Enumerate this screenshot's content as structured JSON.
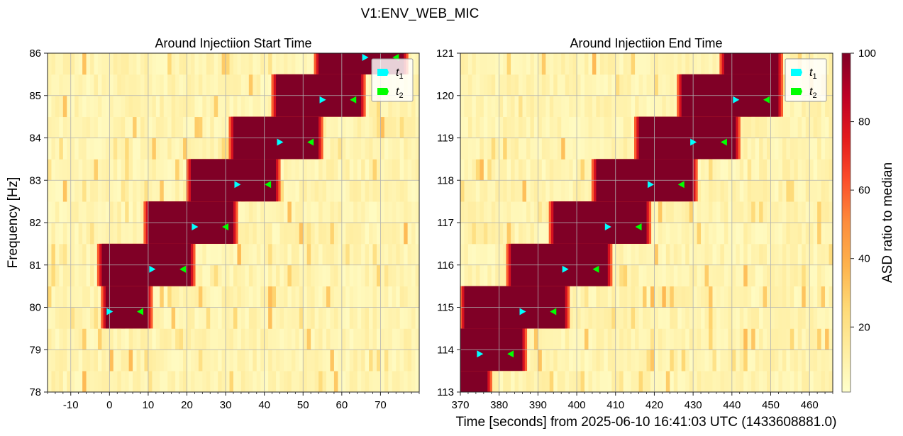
{
  "figure_title": "V1:ENV_WEB_MIC",
  "shared_xlabel": "Time [seconds] from 2025-06-10 16:41:03 UTC (1433608881.0)",
  "colorbar": {
    "label": "ASD ratio to median",
    "range": [
      1,
      100
    ],
    "ticks": [
      20,
      40,
      60,
      80,
      100
    ],
    "colormap": [
      "#ffffcc",
      "#ffeda0",
      "#fed976",
      "#feb24c",
      "#fd8d3c",
      "#fc4e2a",
      "#e31a1c",
      "#bd0026",
      "#800026"
    ]
  },
  "legend": {
    "t1": {
      "label": "t",
      "sub": "1",
      "color": "#00ffff"
    },
    "t2": {
      "label": "t",
      "sub": "2",
      "color": "#00ff00"
    }
  },
  "chart_data": [
    {
      "type": "heatmap",
      "title": "Around Injectiion Start Time",
      "xlabel": "",
      "ylabel": "Frequency [Hz]",
      "xlim": [
        -16,
        80
      ],
      "ylim": [
        78,
        86
      ],
      "xticks": [
        -10,
        0,
        10,
        20,
        30,
        40,
        50,
        60,
        70
      ],
      "yticks": [
        78,
        79,
        80,
        81,
        82,
        83,
        84,
        85,
        86
      ],
      "grid": true,
      "legend_position": "top-right",
      "saturated_blocks": [
        {
          "f_low": 79.5,
          "f_high": 80.5,
          "t_start": -1,
          "t_end": 10
        },
        {
          "f_low": 80.5,
          "f_high": 81.5,
          "t_start": -2,
          "t_end": 21
        },
        {
          "f_low": 81.5,
          "f_high": 82.5,
          "t_start": 10,
          "t_end": 32
        },
        {
          "f_low": 82.5,
          "f_high": 83.5,
          "t_start": 21,
          "t_end": 43
        },
        {
          "f_low": 83.5,
          "f_high": 84.5,
          "t_start": 32,
          "t_end": 54
        },
        {
          "f_low": 84.5,
          "f_high": 85.5,
          "t_start": 43,
          "t_end": 65
        },
        {
          "f_low": 85.5,
          "f_high": 86,
          "t_start": 54,
          "t_end": 76
        }
      ],
      "t1_markers": [
        {
          "t": 0,
          "f": 79.9
        },
        {
          "t": 11,
          "f": 80.9
        },
        {
          "t": 22,
          "f": 81.9
        },
        {
          "t": 33,
          "f": 82.9
        },
        {
          "t": 44,
          "f": 83.9
        },
        {
          "t": 55,
          "f": 84.9
        },
        {
          "t": 66,
          "f": 85.9
        }
      ],
      "t2_markers": [
        {
          "t": 8,
          "f": 79.9
        },
        {
          "t": 19,
          "f": 80.9
        },
        {
          "t": 30,
          "f": 81.9
        },
        {
          "t": 41,
          "f": 82.9
        },
        {
          "t": 52,
          "f": 83.9
        },
        {
          "t": 63,
          "f": 84.9
        },
        {
          "t": 74,
          "f": 85.9
        }
      ]
    },
    {
      "type": "heatmap",
      "title": "Around Injectiion End Time",
      "xlabel": "Time [seconds] from 2025-06-10 16:41:03 UTC (1433608881.0)",
      "ylabel": "",
      "xlim": [
        370,
        466
      ],
      "ylim": [
        113,
        121
      ],
      "xticks": [
        370,
        380,
        390,
        400,
        410,
        420,
        430,
        440,
        450,
        460
      ],
      "yticks": [
        113,
        114,
        115,
        116,
        117,
        118,
        119,
        120,
        121
      ],
      "grid": true,
      "legend_position": "top-right",
      "saturated_blocks": [
        {
          "f_low": 113,
          "f_high": 113.5,
          "t_start": 370,
          "t_end": 377
        },
        {
          "f_low": 113.5,
          "f_high": 114.5,
          "t_start": 370,
          "t_end": 386
        },
        {
          "f_low": 114.5,
          "f_high": 115.5,
          "t_start": 371,
          "t_end": 397
        },
        {
          "f_low": 115.5,
          "f_high": 116.5,
          "t_start": 383,
          "t_end": 408
        },
        {
          "f_low": 116.5,
          "f_high": 117.5,
          "t_start": 394,
          "t_end": 418
        },
        {
          "f_low": 117.5,
          "f_high": 118.5,
          "t_start": 405,
          "t_end": 430
        },
        {
          "f_low": 118.5,
          "f_high": 119.5,
          "t_start": 416,
          "t_end": 441
        },
        {
          "f_low": 119.5,
          "f_high": 120.5,
          "t_start": 427,
          "t_end": 452
        },
        {
          "f_low": 120.5,
          "f_high": 121,
          "t_start": 438,
          "t_end": 452
        }
      ],
      "t1_markers": [
        {
          "t": 375,
          "f": 113.9
        },
        {
          "t": 386,
          "f": 114.9
        },
        {
          "t": 397,
          "f": 115.9
        },
        {
          "t": 408,
          "f": 116.9
        },
        {
          "t": 419,
          "f": 117.9
        },
        {
          "t": 430,
          "f": 118.9
        },
        {
          "t": 441,
          "f": 119.9
        }
      ],
      "t2_markers": [
        {
          "t": 383,
          "f": 113.9
        },
        {
          "t": 394,
          "f": 114.9
        },
        {
          "t": 405,
          "f": 115.9
        },
        {
          "t": 416,
          "f": 116.9
        },
        {
          "t": 427,
          "f": 117.9
        },
        {
          "t": 438,
          "f": 118.9
        },
        {
          "t": 449,
          "f": 119.9
        }
      ]
    }
  ]
}
